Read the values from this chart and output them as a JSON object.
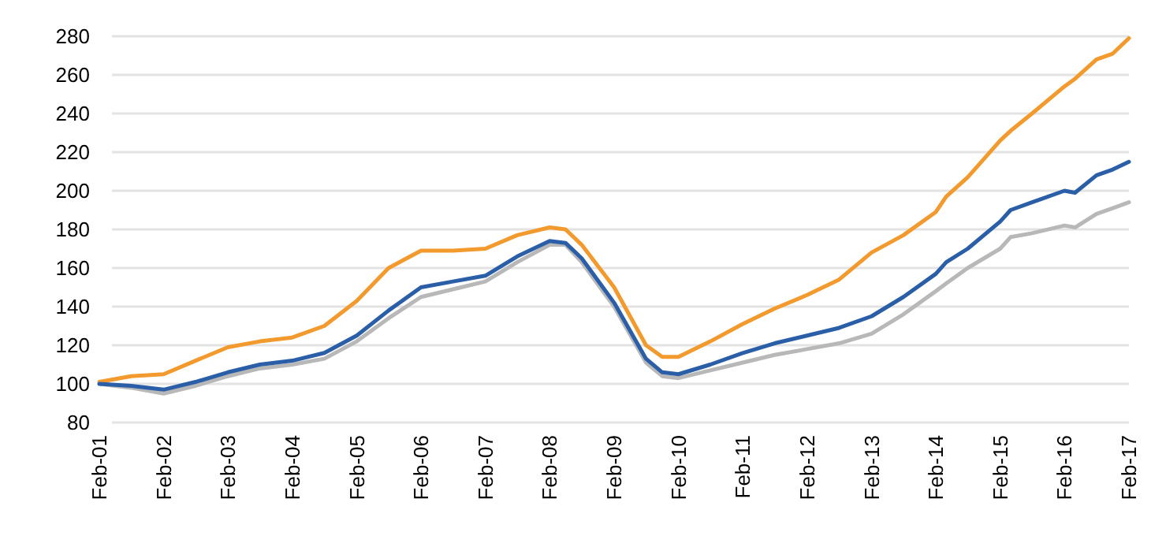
{
  "chart_data": {
    "type": "line",
    "x": [
      "2001-02",
      "2001-08",
      "2002-02",
      "2002-08",
      "2003-02",
      "2003-08",
      "2004-02",
      "2004-08",
      "2005-02",
      "2005-08",
      "2006-02",
      "2006-08",
      "2007-02",
      "2007-08",
      "2008-02",
      "2008-05",
      "2008-08",
      "2009-02",
      "2009-08",
      "2009-11",
      "2010-02",
      "2010-08",
      "2011-02",
      "2011-08",
      "2012-02",
      "2012-08",
      "2013-02",
      "2013-08",
      "2014-02",
      "2014-04",
      "2014-08",
      "2015-02",
      "2015-04",
      "2015-08",
      "2016-02",
      "2016-04",
      "2016-08",
      "2016-11",
      "2017-02"
    ],
    "series": [
      {
        "color": "#f39a2e",
        "values": [
          101,
          104,
          105,
          112,
          119,
          122,
          124,
          130,
          143,
          160,
          169,
          169,
          170,
          177,
          181,
          180,
          172,
          150,
          120,
          114,
          114,
          122,
          131,
          139,
          146,
          154,
          168,
          177,
          189,
          197,
          207,
          226,
          231,
          240,
          254,
          258,
          268,
          271,
          279
        ]
      },
      {
        "color": "#b8b8b8",
        "values": [
          100,
          98,
          95,
          99,
          104,
          108,
          110,
          113,
          122,
          134,
          145,
          149,
          153,
          163,
          172,
          172,
          163,
          140,
          111,
          104,
          103,
          107,
          111,
          115,
          118,
          121,
          126,
          136,
          148,
          152,
          160,
          170,
          176,
          178,
          182,
          181,
          188,
          191,
          194
        ]
      },
      {
        "color": "#2a5fa8",
        "values": [
          100,
          99,
          97,
          101,
          106,
          110,
          112,
          116,
          125,
          138,
          150,
          153,
          156,
          166,
          174,
          173,
          165,
          142,
          113,
          106,
          105,
          110,
          116,
          121,
          125,
          129,
          135,
          145,
          157,
          163,
          170,
          184,
          190,
          194,
          200,
          199,
          208,
          211,
          215
        ]
      }
    ],
    "ylim": [
      80,
      280
    ],
    "yticks": [
      80,
      100,
      120,
      140,
      160,
      180,
      200,
      220,
      240,
      260,
      280
    ],
    "xlim": [
      "2001-02",
      "2017-02"
    ],
    "xticks": [
      {
        "value": "2001-02",
        "label": "Feb-01"
      },
      {
        "value": "2002-02",
        "label": "Feb-02"
      },
      {
        "value": "2003-02",
        "label": "Feb-03"
      },
      {
        "value": "2004-02",
        "label": "Feb-04"
      },
      {
        "value": "2005-02",
        "label": "Feb-05"
      },
      {
        "value": "2006-02",
        "label": "Feb-06"
      },
      {
        "value": "2007-02",
        "label": "Feb-07"
      },
      {
        "value": "2008-02",
        "label": "Feb-08"
      },
      {
        "value": "2009-02",
        "label": "Feb-09"
      },
      {
        "value": "2010-02",
        "label": "Feb-10"
      },
      {
        "value": "2011-02",
        "label": "Feb-11"
      },
      {
        "value": "2012-02",
        "label": "Feb-12"
      },
      {
        "value": "2013-02",
        "label": "Feb-13"
      },
      {
        "value": "2014-02",
        "label": "Feb-14"
      },
      {
        "value": "2015-02",
        "label": "Feb-15"
      },
      {
        "value": "2016-02",
        "label": "Feb-16"
      },
      {
        "value": "2017-02",
        "label": "Feb-17"
      }
    ],
    "grid": "y",
    "line_style": "solid"
  }
}
